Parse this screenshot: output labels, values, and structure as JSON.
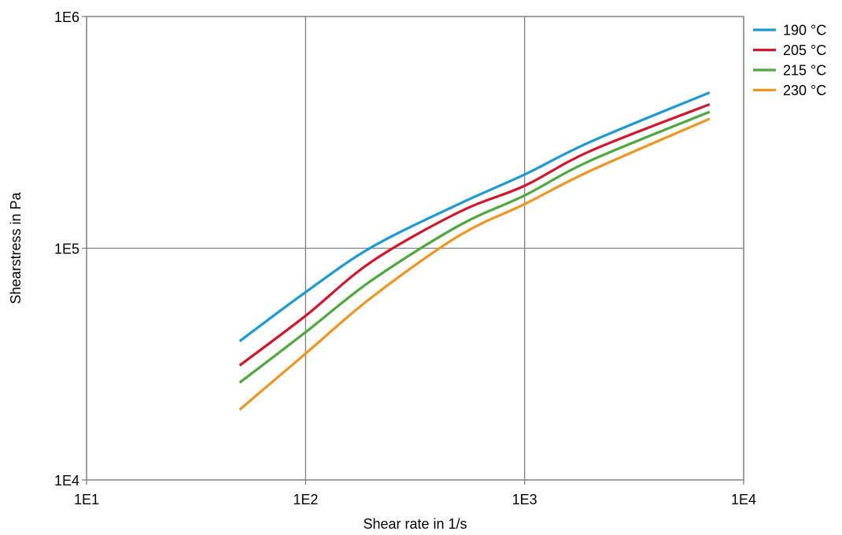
{
  "chart_data": {
    "type": "line",
    "x_scale": "log",
    "y_scale": "log",
    "xlabel": "Shear rate in  1/s",
    "ylabel": "Shearstress in  Pa",
    "xlim": [
      10,
      10000
    ],
    "ylim": [
      10000,
      1000000
    ],
    "x_ticks": [
      {
        "value": 10,
        "label": "1E1"
      },
      {
        "value": 100,
        "label": "1E2"
      },
      {
        "value": 1000,
        "label": "1E3"
      },
      {
        "value": 10000,
        "label": "1E4"
      }
    ],
    "y_ticks": [
      {
        "value": 10000,
        "label": "1E4"
      },
      {
        "value": 100000,
        "label": "1E5"
      },
      {
        "value": 1000000,
        "label": "1E6"
      }
    ],
    "grid": true,
    "legend_position": "top-right",
    "series": [
      {
        "name": "190 °C",
        "color": "#1a9ad6",
        "points": [
          [
            50,
            39700
          ],
          [
            100,
            64600
          ],
          [
            200,
            101000
          ],
          [
            500,
            155000
          ],
          [
            1000,
            208000
          ],
          [
            2000,
            288000
          ],
          [
            7000,
            470000
          ]
        ]
      },
      {
        "name": "205 °C",
        "color": "#d7142a",
        "points": [
          [
            50,
            31200
          ],
          [
            100,
            51100
          ],
          [
            200,
            87400
          ],
          [
            500,
            143000
          ],
          [
            1000,
            186000
          ],
          [
            2000,
            263000
          ],
          [
            7000,
            418000
          ]
        ]
      },
      {
        "name": "215 °C",
        "color": "#4caa3c",
        "points": [
          [
            50,
            26300
          ],
          [
            100,
            43400
          ],
          [
            200,
            72600
          ],
          [
            500,
            125000
          ],
          [
            1000,
            169000
          ],
          [
            2000,
            239000
          ],
          [
            7000,
            388000
          ]
        ]
      },
      {
        "name": "230 °C",
        "color": "#f0961e",
        "points": [
          [
            50,
            20100
          ],
          [
            100,
            35100
          ],
          [
            200,
            61300
          ],
          [
            500,
            113000
          ],
          [
            1000,
            155000
          ],
          [
            2000,
            216000
          ],
          [
            7000,
            362000
          ]
        ]
      }
    ]
  }
}
